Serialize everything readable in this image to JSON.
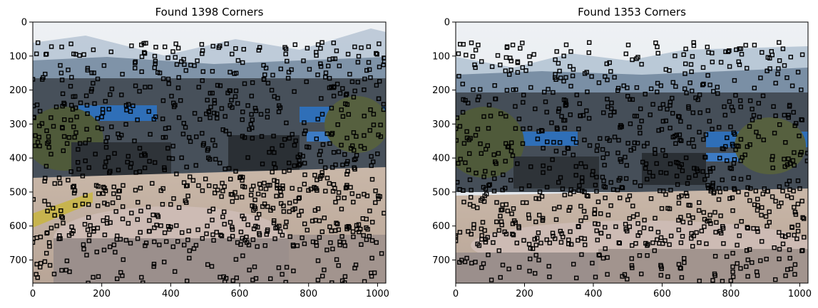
{
  "chart_data": [
    {
      "type": "scatter",
      "title": "Found 1398 Corners",
      "corner_count": 1398,
      "xlim": [
        0,
        1024
      ],
      "ylim": [
        768,
        0
      ],
      "xticks": [
        0,
        200,
        400,
        600,
        800,
        1000
      ],
      "yticks": [
        0,
        100,
        200,
        300,
        400,
        500,
        600,
        700
      ],
      "grid": false,
      "marker": "hollow-square",
      "image": "outdoor plaza with blue awnings, trees, mountains and circular concrete platform"
    },
    {
      "type": "scatter",
      "title": "Found 1353 Corners",
      "corner_count": 1353,
      "xlim": [
        0,
        1024
      ],
      "ylim": [
        768,
        0
      ],
      "xticks": [
        0,
        200,
        400,
        600,
        800,
        1000
      ],
      "yticks": [
        0,
        100,
        200,
        300,
        400,
        500,
        600,
        700
      ],
      "grid": false,
      "marker": "hollow-square",
      "image": "outdoor plaza with blue awnings, trees, mountains and circular concrete platform, shifted viewpoint"
    }
  ]
}
